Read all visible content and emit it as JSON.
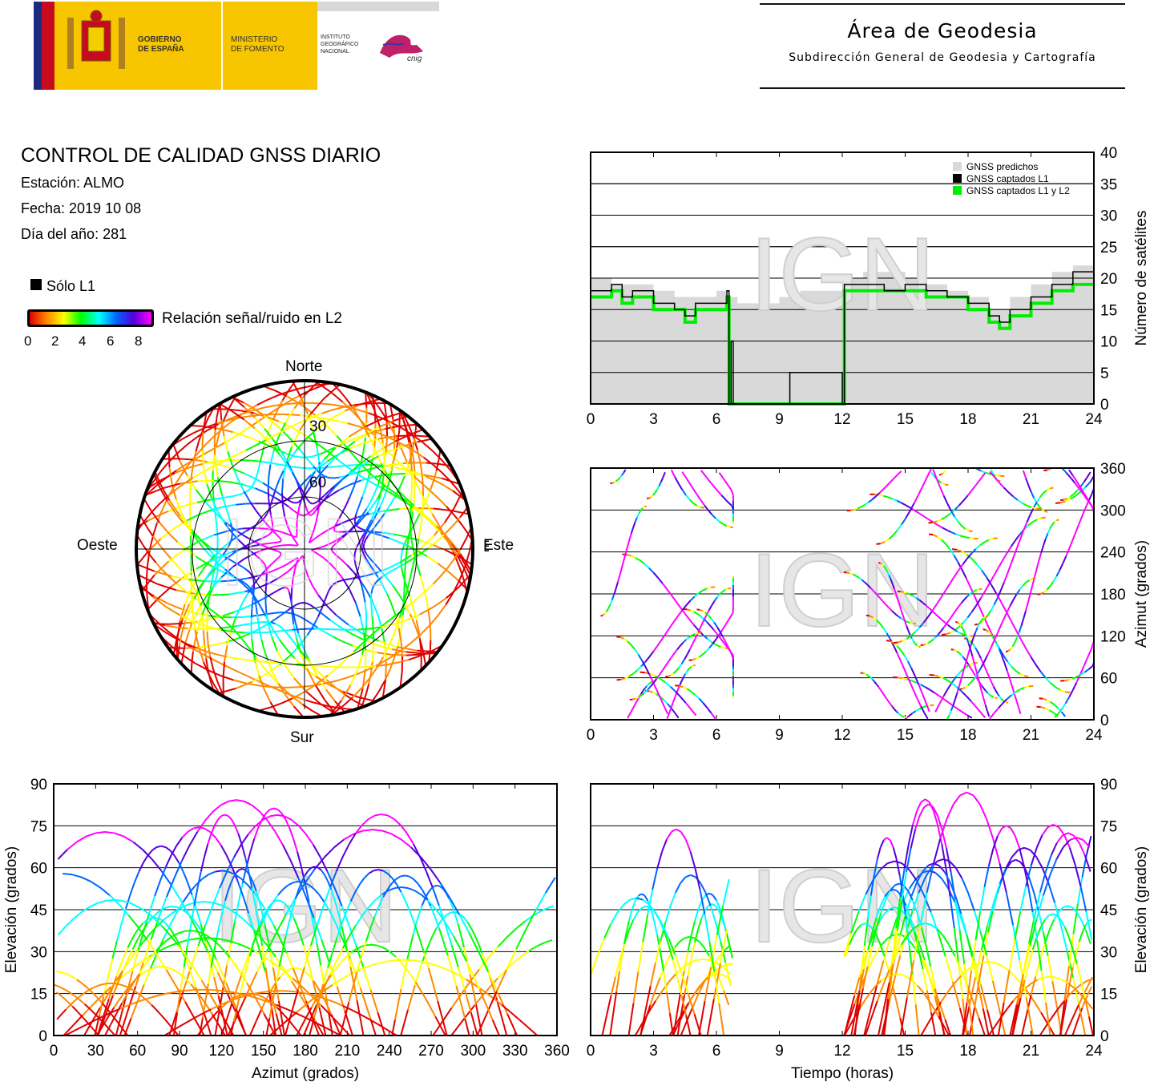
{
  "header": {
    "gobierno": "GOBIERNO\nDE ESPAÑA",
    "ministerio": "MINISTERIO\nDE FOMENTO",
    "instituto": "INSTITUTO\nGEOGRÁFICO\nNACIONAL",
    "cnig": "cnig",
    "area_title": "Área de Geodesia",
    "area_subtitle": "Subdirección General de Geodesia y Cartografía"
  },
  "report": {
    "title": "CONTROL DE CALIDAD GNSS DIARIO",
    "station": "Estación: ALMO",
    "date": "Fecha: 2019 10 08",
    "doy": "Día del año: 281"
  },
  "legend": {
    "l1_only": "Sólo L1",
    "snr_label": "Relación señal/ruido en L2",
    "snr_ticks": [
      "0",
      "2",
      "4",
      "6",
      "8"
    ]
  },
  "watermark": "IGN",
  "colors": {
    "predicted": "#d9d9d9",
    "l1": "#000000",
    "l1l2": "#00ee00",
    "snr_scale": [
      "#e00000",
      "#ff8800",
      "#ffff00",
      "#00ff00",
      "#00ffff",
      "#0066ff",
      "#5500dd",
      "#ff00ff"
    ]
  },
  "chart_data": [
    {
      "type": "area",
      "panel": "satellite-count",
      "xlabel": "",
      "ylabel": "Número de satélites",
      "xlim": [
        0,
        24
      ],
      "ylim": [
        0,
        40
      ],
      "xticks": [
        "0",
        "3",
        "6",
        "9",
        "12",
        "15",
        "18",
        "21",
        "24"
      ],
      "yticks": [
        "0",
        "5",
        "10",
        "15",
        "20",
        "25",
        "30",
        "35",
        "40"
      ],
      "legend": [
        "GNSS predichos",
        "GNSS captados L1",
        "GNSS captados L1 y L2"
      ],
      "legend_position": "top-right",
      "series": [
        {
          "name": "GNSS predichos",
          "x": [
            0,
            1,
            2,
            3,
            4,
            5,
            6,
            6.5,
            7,
            8,
            9,
            10,
            11,
            12,
            13,
            14,
            15,
            16,
            17,
            18,
            19,
            20,
            21,
            22,
            23,
            24
          ],
          "y": [
            20,
            19,
            19,
            18,
            17,
            17,
            18,
            17,
            16,
            16,
            17,
            18,
            18,
            20,
            21,
            21,
            20,
            19,
            18,
            17,
            15,
            17,
            19,
            21,
            22,
            20
          ]
        },
        {
          "name": "GNSS captados L1",
          "x": [
            0,
            0.5,
            1,
            1.5,
            2,
            3,
            4,
            4.5,
            5,
            6,
            6.5,
            6.6,
            6.7,
            6.8,
            9.5,
            12,
            12.1,
            13,
            14,
            15,
            16,
            17,
            18,
            19,
            19.5,
            20,
            21,
            22,
            23,
            24
          ],
          "y": [
            18,
            18,
            19,
            17,
            18,
            16,
            15,
            14,
            16,
            16,
            18,
            0,
            10,
            0,
            5,
            0,
            19,
            19,
            18,
            19,
            18,
            17,
            16,
            14,
            13,
            15,
            17,
            19,
            21,
            20
          ]
        },
        {
          "name": "GNSS captados L1 y L2",
          "x": [
            0,
            0.5,
            1,
            1.5,
            2,
            3,
            4,
            4.5,
            5,
            6,
            6.5,
            6.6,
            6.7,
            6.8,
            9.5,
            12,
            12.1,
            13,
            14,
            15,
            16,
            17,
            18,
            19,
            19.5,
            20,
            21,
            22,
            23,
            24
          ],
          "y": [
            17,
            17,
            18,
            16,
            17,
            15,
            15,
            13,
            15,
            15,
            17,
            0,
            0,
            0,
            0,
            0,
            18,
            18,
            18,
            18,
            17,
            17,
            15,
            13,
            12,
            14,
            16,
            18,
            19,
            19
          ]
        }
      ]
    },
    {
      "type": "scatter",
      "panel": "skyplot",
      "labels": {
        "north": "Norte",
        "south": "Sur",
        "east": "Este",
        "west": "Oeste"
      },
      "rings": [
        "30",
        "60"
      ]
    },
    {
      "type": "scatter",
      "panel": "azimuth-time",
      "xlabel": "",
      "ylabel": "Azimut (grados)",
      "xlim": [
        0,
        24
      ],
      "ylim": [
        0,
        360
      ],
      "xticks": [
        "0",
        "3",
        "6",
        "9",
        "12",
        "15",
        "18",
        "21",
        "24"
      ],
      "yticks": [
        "0",
        "60",
        "120",
        "180",
        "240",
        "300",
        "360"
      ]
    },
    {
      "type": "scatter",
      "panel": "elevation-azimuth",
      "xlabel": "Azimut (grados)",
      "ylabel": "Elevación (grados)",
      "xlim": [
        0,
        360
      ],
      "ylim": [
        0,
        90
      ],
      "xticks": [
        "0",
        "30",
        "60",
        "90",
        "120",
        "150",
        "180",
        "210",
        "240",
        "270",
        "300",
        "330",
        "360"
      ],
      "yticks": [
        "0",
        "15",
        "30",
        "45",
        "60",
        "75",
        "90"
      ]
    },
    {
      "type": "scatter",
      "panel": "elevation-time",
      "xlabel": "Tiempo (horas)",
      "ylabel": "Elevación (grados)",
      "xlim": [
        0,
        24
      ],
      "ylim": [
        0,
        90
      ],
      "xticks": [
        "0",
        "3",
        "6",
        "9",
        "12",
        "15",
        "18",
        "21",
        "24"
      ],
      "yticks": [
        "0",
        "15",
        "30",
        "45",
        "60",
        "75",
        "90"
      ]
    }
  ]
}
